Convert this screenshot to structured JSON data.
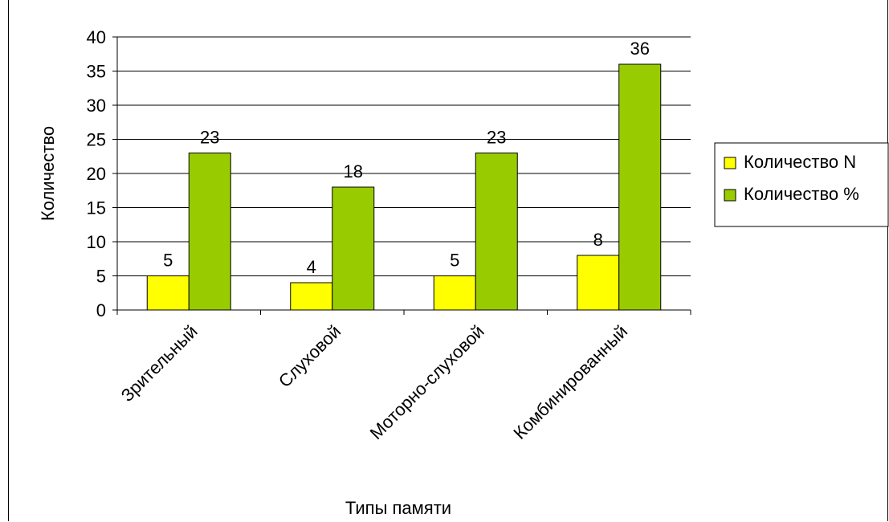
{
  "chart_data": {
    "type": "bar",
    "title": "",
    "xlabel": "Типы памяти",
    "ylabel": "Количество",
    "categories": [
      "Зрительный",
      "Слуховой",
      "Моторно-слуховой",
      "Комбинированный"
    ],
    "series": [
      {
        "name": "Количество N",
        "values": [
          5,
          4,
          5,
          8
        ],
        "color": "#ffff00"
      },
      {
        "name": "Количество %",
        "values": [
          23,
          18,
          23,
          36
        ],
        "color": "#99cc00"
      }
    ],
    "ylim": [
      0,
      40
    ],
    "yticks": [
      0,
      5,
      10,
      15,
      20,
      25,
      30,
      35,
      40
    ],
    "grid": true,
    "data_labels": true,
    "legend_position": "right"
  }
}
